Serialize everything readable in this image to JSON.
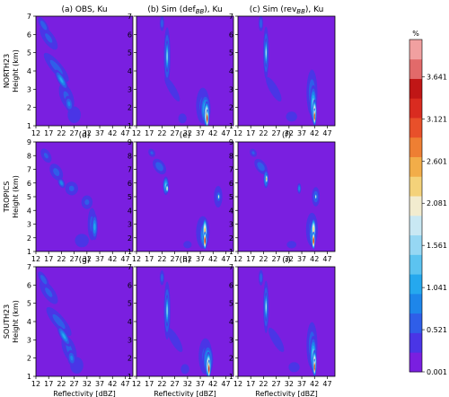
{
  "chart_data": {
    "type": "heatmap",
    "description_units": "%",
    "xlabel": "Reflectivity [dBZ]",
    "ylabel": "Height (km)",
    "row_labels": [
      "NORTH23",
      "TROPICS",
      "SOUTH23"
    ],
    "xticks": [
      "12",
      "17",
      "22",
      "27",
      "32",
      "37",
      "42",
      "47"
    ],
    "yticks_by_row": [
      [
        "1",
        "2",
        "3",
        "4",
        "5",
        "6",
        "7"
      ],
      [
        "1",
        "2",
        "3",
        "4",
        "5",
        "6",
        "7",
        "8",
        "9"
      ],
      [
        "1",
        "2",
        "3",
        "4",
        "5",
        "6",
        "7"
      ]
    ],
    "xlim": [
      12,
      50
    ],
    "ylims": [
      [
        1,
        7
      ],
      [
        1,
        9
      ],
      [
        1,
        7
      ]
    ],
    "panel_titles": [
      [
        "(a) OBS, Ku",
        "(b) Sim (def",
        "(c) Sim (rev"
      ],
      [
        "(d)",
        "(e)",
        "(f)"
      ],
      [
        "(g)",
        "(h)",
        "(i)"
      ]
    ],
    "panel_title_subscript": "BB",
    "panel_title_suffix": "), Ku",
    "colorbar": {
      "unit": "%",
      "ticks": [
        "0.001",
        "0.521",
        "1.041",
        "1.561",
        "2.081",
        "2.601",
        "3.121",
        "3.641"
      ],
      "tick_values": [
        0.001,
        0.521,
        1.041,
        1.561,
        2.081,
        2.601,
        3.121,
        3.641
      ],
      "range": [
        0.001,
        4.1
      ],
      "colors": [
        "#7a1fe0",
        "#4a35e6",
        "#2f5ee8",
        "#1e86ea",
        "#25a8ee",
        "#5cc3f0",
        "#96d7f3",
        "#c9e8f3",
        "#f2eccf",
        "#f4d27a",
        "#f2ad49",
        "#ee7f33",
        "#e8502a",
        "#d92b20",
        "#c01616",
        "#e26a6a",
        "#f1a0a0"
      ]
    },
    "panels": [
      {
        "id": "a",
        "row": 0,
        "col": 0,
        "blobs": [
          {
            "x": 17,
            "y": 5.8,
            "rx": 3.4,
            "ry": 1.2,
            "v": 0.55,
            "rot": -35
          },
          {
            "x": 20,
            "y": 4.2,
            "rx": 3.2,
            "ry": 1.5,
            "v": 0.62,
            "rot": -40
          },
          {
            "x": 24,
            "y": 2.6,
            "rx": 4.0,
            "ry": 1.2,
            "v": 0.55,
            "rot": -20
          },
          {
            "x": 27,
            "y": 1.6,
            "rx": 4.5,
            "ry": 0.8,
            "v": 0.48,
            "rot": 0
          },
          {
            "x": 22,
            "y": 3.5,
            "rx": 1.8,
            "ry": 0.8,
            "v": 1.05,
            "rot": -30
          },
          {
            "x": 25,
            "y": 2.2,
            "rx": 2.2,
            "ry": 0.6,
            "v": 0.8,
            "rot": -10
          },
          {
            "x": 15,
            "y": 6.5,
            "rx": 2.0,
            "ry": 0.7,
            "v": 0.7,
            "rot": -30
          }
        ]
      },
      {
        "id": "b",
        "row": 0,
        "col": 1,
        "blobs": [
          {
            "x": 24,
            "y": 4.8,
            "rx": 1.6,
            "ry": 2.0,
            "v": 1.0,
            "rot": 0
          },
          {
            "x": 24,
            "y": 4.8,
            "rx": 0.7,
            "ry": 1.0,
            "v": 1.6,
            "rot": 0
          },
          {
            "x": 22,
            "y": 6.6,
            "rx": 1.3,
            "ry": 0.6,
            "v": 0.65,
            "rot": 0
          },
          {
            "x": 26,
            "y": 3.0,
            "rx": 2.6,
            "ry": 1.4,
            "v": 0.45,
            "rot": -30
          },
          {
            "x": 38,
            "y": 2.1,
            "rx": 4.0,
            "ry": 1.5,
            "v": 0.6,
            "rot": 0
          },
          {
            "x": 39,
            "y": 1.9,
            "rx": 2.4,
            "ry": 1.0,
            "v": 1.3,
            "rot": 0
          },
          {
            "x": 39.5,
            "y": 1.6,
            "rx": 1.2,
            "ry": 0.8,
            "v": 2.6,
            "rot": 0
          },
          {
            "x": 39.7,
            "y": 1.4,
            "rx": 0.5,
            "ry": 0.55,
            "v": 3.6,
            "rot": 0
          },
          {
            "x": 30,
            "y": 1.4,
            "rx": 3.0,
            "ry": 0.5,
            "v": 0.45,
            "rot": 0
          }
        ]
      },
      {
        "id": "c",
        "row": 0,
        "col": 2,
        "blobs": [
          {
            "x": 23,
            "y": 5.0,
            "rx": 1.4,
            "ry": 1.8,
            "v": 1.0,
            "rot": 0
          },
          {
            "x": 23,
            "y": 5.0,
            "rx": 0.6,
            "ry": 0.9,
            "v": 1.7,
            "rot": 0
          },
          {
            "x": 21,
            "y": 6.6,
            "rx": 1.3,
            "ry": 0.6,
            "v": 0.7,
            "rot": 0
          },
          {
            "x": 26,
            "y": 3.0,
            "rx": 3.0,
            "ry": 1.4,
            "v": 0.45,
            "rot": -30
          },
          {
            "x": 41,
            "y": 2.8,
            "rx": 3.0,
            "ry": 1.8,
            "v": 0.7,
            "rot": 0
          },
          {
            "x": 41.5,
            "y": 2.2,
            "rx": 1.6,
            "ry": 1.2,
            "v": 1.4,
            "rot": 0
          },
          {
            "x": 42,
            "y": 1.7,
            "rx": 0.9,
            "ry": 0.8,
            "v": 2.7,
            "rot": 0
          },
          {
            "x": 42,
            "y": 1.5,
            "rx": 0.4,
            "ry": 0.5,
            "v": 3.7,
            "rot": 0
          },
          {
            "x": 33,
            "y": 1.5,
            "rx": 4.0,
            "ry": 0.5,
            "v": 0.45,
            "rot": 0
          }
        ]
      },
      {
        "id": "d",
        "row": 1,
        "col": 0,
        "blobs": [
          {
            "x": 16,
            "y": 8.0,
            "rx": 2.8,
            "ry": 0.9,
            "v": 0.55,
            "rot": -30
          },
          {
            "x": 20,
            "y": 6.8,
            "rx": 3.4,
            "ry": 1.0,
            "v": 0.6,
            "rot": -30
          },
          {
            "x": 26,
            "y": 5.6,
            "rx": 4.0,
            "ry": 0.8,
            "v": 0.55,
            "rot": -10
          },
          {
            "x": 32,
            "y": 4.6,
            "rx": 3.5,
            "ry": 0.8,
            "v": 0.55,
            "rot": 0
          },
          {
            "x": 34,
            "y": 3.0,
            "rx": 2.6,
            "ry": 1.8,
            "v": 0.6,
            "rot": 0
          },
          {
            "x": 35,
            "y": 2.8,
            "rx": 1.5,
            "ry": 1.2,
            "v": 1.05,
            "rot": 0
          },
          {
            "x": 30,
            "y": 1.8,
            "rx": 5.0,
            "ry": 0.9,
            "v": 0.45,
            "rot": 0
          },
          {
            "x": 22,
            "y": 6.0,
            "rx": 1.6,
            "ry": 0.5,
            "v": 0.9,
            "rot": -25
          }
        ]
      },
      {
        "id": "e",
        "row": 1,
        "col": 1,
        "blobs": [
          {
            "x": 21,
            "y": 7.2,
            "rx": 3.0,
            "ry": 0.9,
            "v": 0.7,
            "rot": -35
          },
          {
            "x": 23.5,
            "y": 5.8,
            "rx": 1.4,
            "ry": 0.8,
            "v": 1.3,
            "rot": 0
          },
          {
            "x": 24,
            "y": 5.6,
            "rx": 0.6,
            "ry": 0.35,
            "v": 2.2,
            "rot": 0
          },
          {
            "x": 18,
            "y": 8.2,
            "rx": 2.0,
            "ry": 0.5,
            "v": 0.55,
            "rot": -30
          },
          {
            "x": 44,
            "y": 5.0,
            "rx": 2.5,
            "ry": 1.2,
            "v": 0.6,
            "rot": 0
          },
          {
            "x": 44.2,
            "y": 5.0,
            "rx": 1.0,
            "ry": 0.5,
            "v": 1.2,
            "rot": 0
          },
          {
            "x": 44.2,
            "y": 5.0,
            "rx": 0.4,
            "ry": 0.25,
            "v": 2.3,
            "rot": 0
          },
          {
            "x": 38,
            "y": 2.4,
            "rx": 4.0,
            "ry": 1.8,
            "v": 0.6,
            "rot": 0
          },
          {
            "x": 38.5,
            "y": 2.2,
            "rx": 2.2,
            "ry": 1.2,
            "v": 1.3,
            "rot": 0
          },
          {
            "x": 38.8,
            "y": 2.5,
            "rx": 1.0,
            "ry": 1.0,
            "v": 2.5,
            "rot": 0
          },
          {
            "x": 38.8,
            "y": 1.8,
            "rx": 0.6,
            "ry": 0.7,
            "v": 3.6,
            "rot": 0
          },
          {
            "x": 32,
            "y": 1.5,
            "rx": 3.0,
            "ry": 0.5,
            "v": 0.45,
            "rot": 0
          }
        ]
      },
      {
        "id": "f",
        "row": 1,
        "col": 2,
        "blobs": [
          {
            "x": 21,
            "y": 7.2,
            "rx": 2.8,
            "ry": 0.9,
            "v": 0.7,
            "rot": -35
          },
          {
            "x": 23,
            "y": 6.3,
            "rx": 1.2,
            "ry": 0.8,
            "v": 1.3,
            "rot": 0
          },
          {
            "x": 23.2,
            "y": 6.3,
            "rx": 0.45,
            "ry": 0.4,
            "v": 2.7,
            "rot": 0
          },
          {
            "x": 18,
            "y": 8.2,
            "rx": 2.0,
            "ry": 0.5,
            "v": 0.55,
            "rot": -30
          },
          {
            "x": 36,
            "y": 5.6,
            "rx": 1.0,
            "ry": 0.5,
            "v": 0.9,
            "rot": 0
          },
          {
            "x": 42.5,
            "y": 5.0,
            "rx": 2.2,
            "ry": 1.0,
            "v": 0.7,
            "rot": 0
          },
          {
            "x": 42.5,
            "y": 5.0,
            "rx": 0.4,
            "ry": 0.25,
            "v": 2.2,
            "rot": 0
          },
          {
            "x": 41,
            "y": 2.6,
            "rx": 3.4,
            "ry": 1.8,
            "v": 0.65,
            "rot": 0
          },
          {
            "x": 41.3,
            "y": 2.3,
            "rx": 1.8,
            "ry": 1.2,
            "v": 1.3,
            "rot": 0
          },
          {
            "x": 41.6,
            "y": 2.6,
            "rx": 1.0,
            "ry": 0.9,
            "v": 2.4,
            "rot": 0
          },
          {
            "x": 41.6,
            "y": 1.8,
            "rx": 0.6,
            "ry": 0.7,
            "v": 3.6,
            "rot": 0
          },
          {
            "x": 33,
            "y": 1.5,
            "rx": 3.5,
            "ry": 0.5,
            "v": 0.45,
            "rot": 0
          }
        ]
      },
      {
        "id": "g",
        "row": 2,
        "col": 0,
        "blobs": [
          {
            "x": 17,
            "y": 5.6,
            "rx": 3.6,
            "ry": 1.2,
            "v": 0.55,
            "rot": -35
          },
          {
            "x": 21,
            "y": 4.0,
            "rx": 3.4,
            "ry": 1.5,
            "v": 0.62,
            "rot": -40
          },
          {
            "x": 25,
            "y": 2.5,
            "rx": 4.0,
            "ry": 1.2,
            "v": 0.55,
            "rot": -20
          },
          {
            "x": 28,
            "y": 1.6,
            "rx": 4.5,
            "ry": 0.8,
            "v": 0.48,
            "rot": 0
          },
          {
            "x": 23,
            "y": 3.2,
            "rx": 1.8,
            "ry": 0.8,
            "v": 1.05,
            "rot": -30
          },
          {
            "x": 26,
            "y": 2.0,
            "rx": 2.2,
            "ry": 0.6,
            "v": 0.8,
            "rot": -10
          },
          {
            "x": 15,
            "y": 6.3,
            "rx": 2.0,
            "ry": 0.7,
            "v": 0.7,
            "rot": -30
          }
        ]
      },
      {
        "id": "h",
        "row": 2,
        "col": 1,
        "blobs": [
          {
            "x": 24,
            "y": 4.6,
            "rx": 1.6,
            "ry": 2.0,
            "v": 1.0,
            "rot": 0
          },
          {
            "x": 24,
            "y": 4.6,
            "rx": 0.7,
            "ry": 1.0,
            "v": 1.6,
            "rot": 0
          },
          {
            "x": 22,
            "y": 6.4,
            "rx": 1.3,
            "ry": 0.6,
            "v": 0.65,
            "rot": 0
          },
          {
            "x": 27,
            "y": 3.0,
            "rx": 3.0,
            "ry": 1.4,
            "v": 0.45,
            "rot": -30
          },
          {
            "x": 39,
            "y": 2.1,
            "rx": 4.0,
            "ry": 1.5,
            "v": 0.6,
            "rot": 0
          },
          {
            "x": 40,
            "y": 1.9,
            "rx": 2.4,
            "ry": 1.0,
            "v": 1.3,
            "rot": 0
          },
          {
            "x": 40.2,
            "y": 1.6,
            "rx": 1.2,
            "ry": 0.8,
            "v": 2.6,
            "rot": 0
          },
          {
            "x": 40.4,
            "y": 1.4,
            "rx": 0.5,
            "ry": 0.55,
            "v": 3.6,
            "rot": 0
          },
          {
            "x": 31,
            "y": 1.4,
            "rx": 3.0,
            "ry": 0.5,
            "v": 0.45,
            "rot": 0
          }
        ]
      },
      {
        "id": "i",
        "row": 2,
        "col": 2,
        "blobs": [
          {
            "x": 23,
            "y": 4.8,
            "rx": 1.4,
            "ry": 1.8,
            "v": 1.0,
            "rot": 0
          },
          {
            "x": 23,
            "y": 4.8,
            "rx": 0.6,
            "ry": 0.9,
            "v": 1.7,
            "rot": 0
          },
          {
            "x": 21,
            "y": 6.4,
            "rx": 1.3,
            "ry": 0.6,
            "v": 0.7,
            "rot": 0
          },
          {
            "x": 27,
            "y": 3.0,
            "rx": 3.0,
            "ry": 1.4,
            "v": 0.45,
            "rot": -30
          },
          {
            "x": 41,
            "y": 2.7,
            "rx": 3.0,
            "ry": 1.8,
            "v": 0.7,
            "rot": 0
          },
          {
            "x": 41.5,
            "y": 2.2,
            "rx": 1.6,
            "ry": 1.2,
            "v": 1.4,
            "rot": 0
          },
          {
            "x": 42,
            "y": 1.7,
            "rx": 0.9,
            "ry": 0.8,
            "v": 2.7,
            "rot": 0
          },
          {
            "x": 42,
            "y": 1.5,
            "rx": 0.4,
            "ry": 0.5,
            "v": 3.7,
            "rot": 0
          },
          {
            "x": 34,
            "y": 1.5,
            "rx": 4.0,
            "ry": 0.5,
            "v": 0.45,
            "rot": 0
          }
        ]
      }
    ]
  }
}
